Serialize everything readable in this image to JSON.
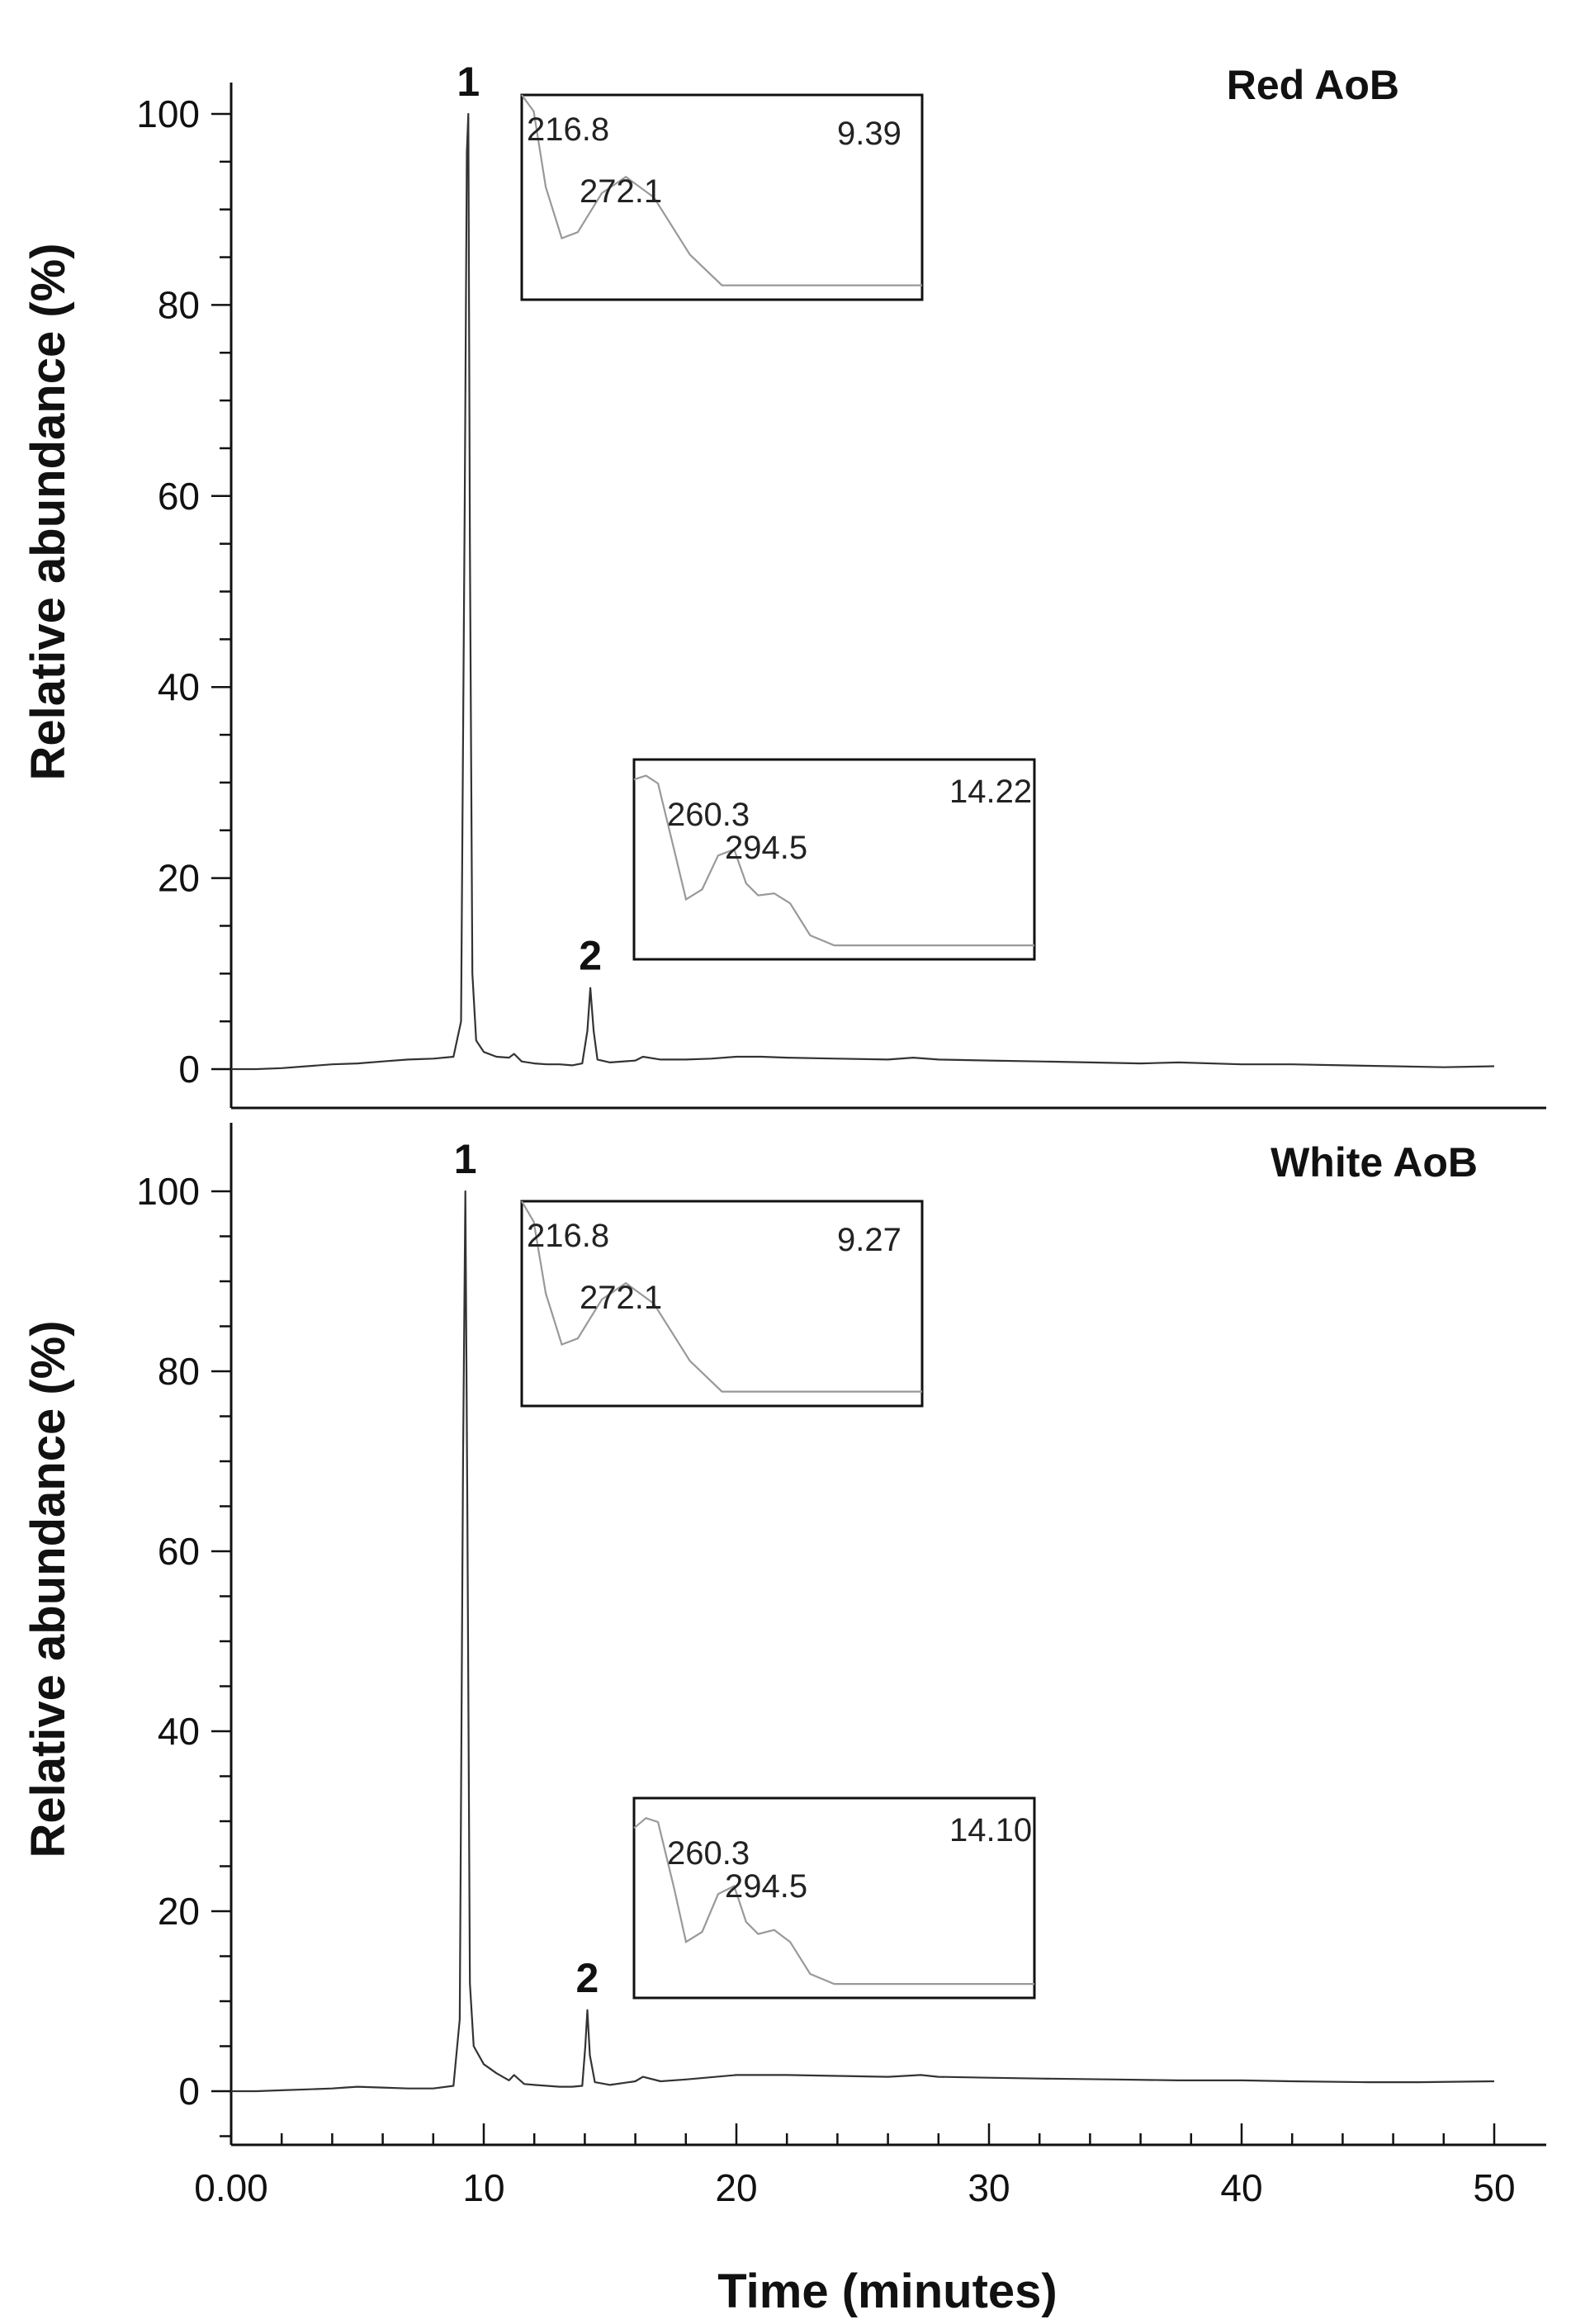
{
  "chart_data": [
    {
      "type": "line",
      "title": "Red AoB",
      "xlabel": "Time (minutes)",
      "ylabel": "Relative abundance (%)",
      "xlim": [
        0,
        51
      ],
      "ylim": [
        -4,
        104
      ],
      "x_ticks": [
        0,
        10,
        20,
        30,
        40,
        50
      ],
      "x_tick_labels": [
        "0.00",
        "10",
        "20",
        "30",
        "40",
        "50"
      ],
      "y_ticks": [
        0,
        20,
        40,
        60,
        80,
        100
      ],
      "y_tick_labels": [
        "0",
        "20",
        "40",
        "60",
        "80",
        "100"
      ],
      "series": [
        {
          "x": [
            0,
            1,
            2,
            3,
            4,
            5,
            6,
            7,
            8,
            8.8,
            9.1,
            9.25,
            9.33,
            9.39,
            9.45,
            9.55,
            9.7,
            10,
            10.5,
            11,
            11.2,
            11.5,
            12,
            12.5,
            13,
            13.5,
            13.9,
            14.1,
            14.22,
            14.35,
            14.5,
            15,
            16,
            16.3,
            17,
            18,
            19,
            20,
            21,
            22,
            24,
            26,
            27,
            28,
            30,
            32,
            34,
            36,
            37.5,
            40,
            42,
            44,
            46,
            48,
            50
          ],
          "y": [
            0,
            0,
            0.1,
            0.3,
            0.5,
            0.6,
            0.8,
            1,
            1.1,
            1.3,
            5,
            60,
            96,
            100,
            55,
            10,
            3,
            1.8,
            1.3,
            1.2,
            1.6,
            0.8,
            0.6,
            0.5,
            0.5,
            0.4,
            0.6,
            4,
            8.5,
            4,
            1,
            0.7,
            0.9,
            1.3,
            1,
            1,
            1.1,
            1.3,
            1.3,
            1.2,
            1.1,
            1,
            1.2,
            1,
            0.9,
            0.8,
            0.7,
            0.6,
            0.7,
            0.5,
            0.5,
            0.4,
            0.3,
            0.2,
            0.3
          ]
        }
      ],
      "annotations": [
        {
          "text": "1",
          "x": 9.39
        },
        {
          "text": "2",
          "x": 14.22
        }
      ],
      "insets": [
        {
          "retention_time": "9.39",
          "labels": [
            "216.8",
            "272.1"
          ],
          "spectrum": [
            [
              0,
              1
            ],
            [
              0.03,
              0.92
            ],
            [
              0.06,
              0.55
            ],
            [
              0.1,
              0.3
            ],
            [
              0.14,
              0.33
            ],
            [
              0.2,
              0.52
            ],
            [
              0.26,
              0.6
            ],
            [
              0.33,
              0.5
            ],
            [
              0.42,
              0.22
            ],
            [
              0.5,
              0.07
            ],
            [
              0.6,
              0.07
            ],
            [
              1,
              0.07
            ]
          ]
        },
        {
          "retention_time": "14.22",
          "labels": [
            "260.3",
            "294.5"
          ],
          "spectrum": [
            [
              0,
              0.9
            ],
            [
              0.03,
              0.92
            ],
            [
              0.06,
              0.88
            ],
            [
              0.1,
              0.55
            ],
            [
              0.13,
              0.3
            ],
            [
              0.17,
              0.35
            ],
            [
              0.21,
              0.52
            ],
            [
              0.25,
              0.55
            ],
            [
              0.28,
              0.38
            ],
            [
              0.31,
              0.32
            ],
            [
              0.35,
              0.33
            ],
            [
              0.39,
              0.28
            ],
            [
              0.44,
              0.12
            ],
            [
              0.5,
              0.07
            ],
            [
              1,
              0.07
            ]
          ]
        }
      ]
    },
    {
      "type": "line",
      "title": "White AoB",
      "xlabel": "Time (minutes)",
      "ylabel": "Relative abundance (%)",
      "xlim": [
        0,
        51
      ],
      "ylim": [
        -5,
        104
      ],
      "x_ticks": [
        0,
        10,
        20,
        30,
        40,
        50
      ],
      "x_tick_labels": [
        "0.00",
        "10",
        "20",
        "30",
        "40",
        "50"
      ],
      "y_ticks": [
        0,
        20,
        40,
        60,
        80,
        100
      ],
      "y_tick_labels": [
        "0",
        "20",
        "40",
        "60",
        "80",
        "100"
      ],
      "series": [
        {
          "x": [
            0,
            1,
            2,
            3,
            4,
            4.5,
            5,
            6,
            7,
            8,
            8.8,
            9.05,
            9.18,
            9.27,
            9.35,
            9.45,
            9.6,
            10,
            10.5,
            11,
            11.2,
            11.6,
            12,
            12.5,
            13,
            13.5,
            13.9,
            14.02,
            14.1,
            14.2,
            14.4,
            15,
            16,
            16.3,
            17,
            18,
            20,
            22,
            24,
            26,
            27.3,
            28,
            30,
            32,
            35,
            37.5,
            40,
            42,
            45,
            47,
            50
          ],
          "y": [
            0,
            0,
            0.1,
            0.2,
            0.3,
            0.4,
            0.5,
            0.4,
            0.3,
            0.3,
            0.6,
            8,
            70,
            100,
            65,
            12,
            5,
            3,
            2,
            1.2,
            1.8,
            0.8,
            0.7,
            0.6,
            0.5,
            0.5,
            0.6,
            5,
            9,
            4,
            1,
            0.7,
            1.1,
            1.6,
            1.1,
            1.3,
            1.8,
            1.8,
            1.7,
            1.6,
            1.8,
            1.6,
            1.5,
            1.4,
            1.3,
            1.2,
            1.2,
            1.1,
            1,
            1,
            1.1
          ]
        }
      ],
      "annotations": [
        {
          "text": "1",
          "x": 9.27
        },
        {
          "text": "2",
          "x": 14.1
        }
      ],
      "insets": [
        {
          "retention_time": "9.27",
          "labels": [
            "216.8",
            "272.1"
          ],
          "spectrum": [
            [
              0,
              1
            ],
            [
              0.03,
              0.9
            ],
            [
              0.06,
              0.55
            ],
            [
              0.1,
              0.3
            ],
            [
              0.14,
              0.33
            ],
            [
              0.2,
              0.52
            ],
            [
              0.26,
              0.6
            ],
            [
              0.33,
              0.5
            ],
            [
              0.42,
              0.22
            ],
            [
              0.5,
              0.07
            ],
            [
              0.6,
              0.07
            ],
            [
              1,
              0.07
            ]
          ]
        },
        {
          "retention_time": "14.10",
          "labels": [
            "260.3",
            "294.5"
          ],
          "spectrum": [
            [
              0,
              0.85
            ],
            [
              0.03,
              0.9
            ],
            [
              0.06,
              0.88
            ],
            [
              0.1,
              0.55
            ],
            [
              0.13,
              0.28
            ],
            [
              0.17,
              0.33
            ],
            [
              0.21,
              0.52
            ],
            [
              0.25,
              0.56
            ],
            [
              0.28,
              0.38
            ],
            [
              0.31,
              0.32
            ],
            [
              0.35,
              0.34
            ],
            [
              0.39,
              0.28
            ],
            [
              0.44,
              0.12
            ],
            [
              0.5,
              0.07
            ],
            [
              1,
              0.07
            ]
          ]
        }
      ]
    }
  ]
}
